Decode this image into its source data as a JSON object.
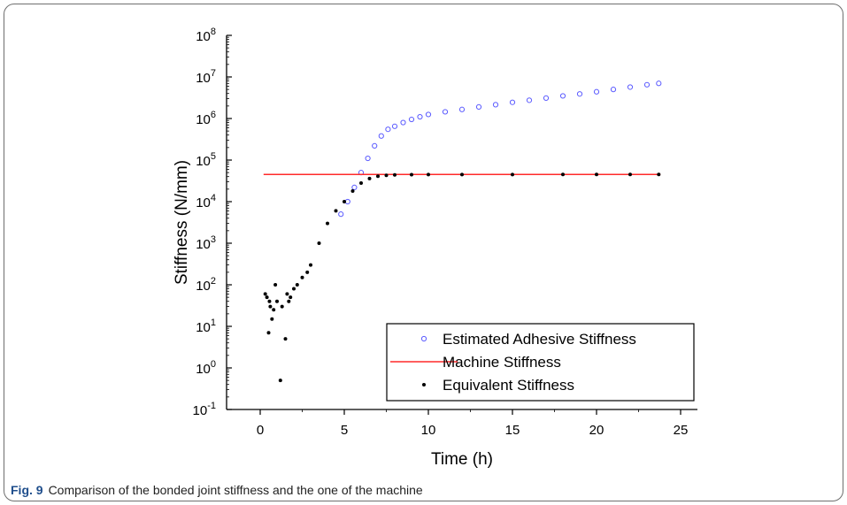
{
  "figure": {
    "label": "Fig. 9",
    "caption": "Comparison of the bonded joint stiffness and the one of the machine"
  },
  "colors": {
    "adhesive": "#5b5bff",
    "machine": "#ff2a2a",
    "equivalent": "#000000",
    "axis": "#000000",
    "figLabel": "#1f4e8c"
  },
  "chart_data": {
    "type": "scatter",
    "xlabel": "Time (h)",
    "ylabel": "Stiffness (N/mm)",
    "xlim": [
      -2,
      26
    ],
    "ylim_log10": [
      -1,
      8
    ],
    "yscale": "log",
    "grid": false,
    "legend_position": "bottom-right",
    "x_ticks": [
      "0",
      "5",
      "10",
      "15",
      "20",
      "25"
    ],
    "y_ticks": [
      {
        "base": "10",
        "exp": "8"
      },
      {
        "base": "10",
        "exp": "7"
      },
      {
        "base": "10",
        "exp": "6"
      },
      {
        "base": "10",
        "exp": "5"
      },
      {
        "base": "10",
        "exp": "4"
      },
      {
        "base": "10",
        "exp": "3"
      },
      {
        "base": "10",
        "exp": "2"
      },
      {
        "base": "10",
        "exp": "1"
      },
      {
        "base": "10",
        "exp": "0"
      },
      {
        "base": "10",
        "exp": "-1"
      }
    ],
    "series": [
      {
        "name": "Estimated Adhesive Stiffness",
        "marker": "open-circle",
        "x": [
          4.8,
          5.2,
          5.6,
          6.0,
          6.4,
          6.8,
          7.2,
          7.6,
          8.0,
          8.5,
          9.0,
          9.5,
          10.0,
          11.0,
          12.0,
          13.0,
          14.0,
          15.0,
          16.0,
          17.0,
          18.0,
          19.0,
          20.0,
          21.0,
          22.0,
          23.0,
          23.7
        ],
        "y": [
          5000,
          10000,
          22000,
          50000,
          110000,
          220000,
          380000,
          550000,
          650000,
          800000,
          950000,
          1100000,
          1250000,
          1450000,
          1650000,
          1900000,
          2150000,
          2450000,
          2750000,
          3100000,
          3500000,
          3900000,
          4400000,
          5000000,
          5700000,
          6500000,
          7000000
        ]
      },
      {
        "name": "Machine Stiffness",
        "marker": "line",
        "x": [
          0.2,
          23.8
        ],
        "y": [
          45000,
          45000
        ]
      },
      {
        "name": "Equivalent Stiffness",
        "marker": "filled-dot",
        "x": [
          0.3,
          0.4,
          0.5,
          0.55,
          0.6,
          0.7,
          0.8,
          0.9,
          1.0,
          1.2,
          1.3,
          1.5,
          1.6,
          1.7,
          1.8,
          2.0,
          2.2,
          2.5,
          2.8,
          3.0,
          3.5,
          4.0,
          4.5,
          5.0,
          5.5,
          6.0,
          6.5,
          7.0,
          7.5,
          8.0,
          9.0,
          10.0,
          12.0,
          15.0,
          18.0,
          20.0,
          22.0,
          23.7
        ],
        "y": [
          60,
          50,
          7,
          40,
          30,
          15,
          25,
          100,
          40,
          0.5,
          30,
          5,
          60,
          40,
          50,
          80,
          100,
          150,
          200,
          300,
          1000,
          3000,
          6000,
          10000,
          18000,
          28000,
          36000,
          41000,
          43000,
          44000,
          44500,
          44700,
          44800,
          44900,
          45000,
          45000,
          45000,
          45000
        ]
      }
    ]
  }
}
